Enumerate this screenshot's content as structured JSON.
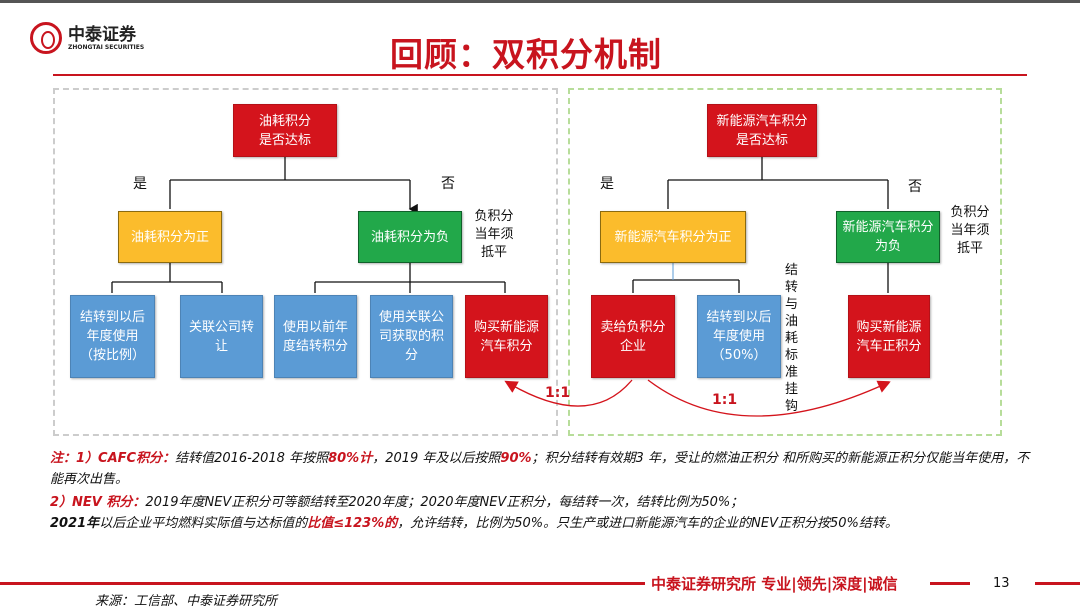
{
  "header": {
    "logo_cn": "中泰证券",
    "logo_en": "ZHONGTAI SECURITIES",
    "title": "回顾：双积分机制"
  },
  "colors": {
    "brand_red": "#c8141e",
    "box_red": "#d4141c",
    "box_yellow": "#fbbc2c",
    "box_green": "#22a84a",
    "box_blue": "#5b9bd5"
  },
  "left": {
    "root": "油耗积分\n是否达标",
    "yes": "是",
    "no": "否",
    "positive": "油耗积分为正",
    "negative": "油耗积分为负",
    "neg_note": "负积分\n当年须\n抵平",
    "pos_options": [
      "结转到以后年度使用（按比例）",
      "关联公司转让"
    ],
    "neg_options": [
      "使用以前年度结转积分",
      "使用关联公司获取的积分",
      "购买新能源汽车积分"
    ]
  },
  "right": {
    "root": "新能源汽车积分\n是否达标",
    "yes": "是",
    "no": "否",
    "positive": "新能源汽车积分为正",
    "negative": "新能源汽车积分为负",
    "neg_note": "负积分\n当年须\n抵平",
    "pos_options": [
      "卖给负积分企业",
      "结转到以后年度使用（50%）"
    ],
    "link_note": "结转与油耗标准挂钩",
    "neg_option": "购买新能源汽车正积分"
  },
  "ratios": [
    "1:1",
    "1:1"
  ],
  "notes": {
    "n1_prefix": "注：1）CAFC积分：",
    "n1_a": "结转值2016-2018 年按照",
    "n1_b": "80%计",
    "n1_c": "，2019 年及以后按照",
    "n1_d": "90%",
    "n1_e": "；积分结转有效期3 年，受让的燃油正积分 和所购买的新能源正积分仅能当年使用，不能再次出售。",
    "n2_prefix": "2）NEV 积分：",
    "n2_a": "2019年度NEV正积分可等额结转至2020年度；2020年度NEV正积分，每结转一次，结转比例为50%；",
    "n3_a": "2021年",
    "n3_b": "以后企业平均燃料实际值与达标值的",
    "n3_c": "比值≤123%的",
    "n3_d": "，允许结转，比例为50%。只生产或进口新能源汽车的企业的NEV正积分按50%结转。"
  },
  "footer": {
    "slogan": "中泰证券研究所 专业|领先|深度|诚信",
    "page": "13",
    "source": "来源：工信部、中泰证券研究所"
  }
}
